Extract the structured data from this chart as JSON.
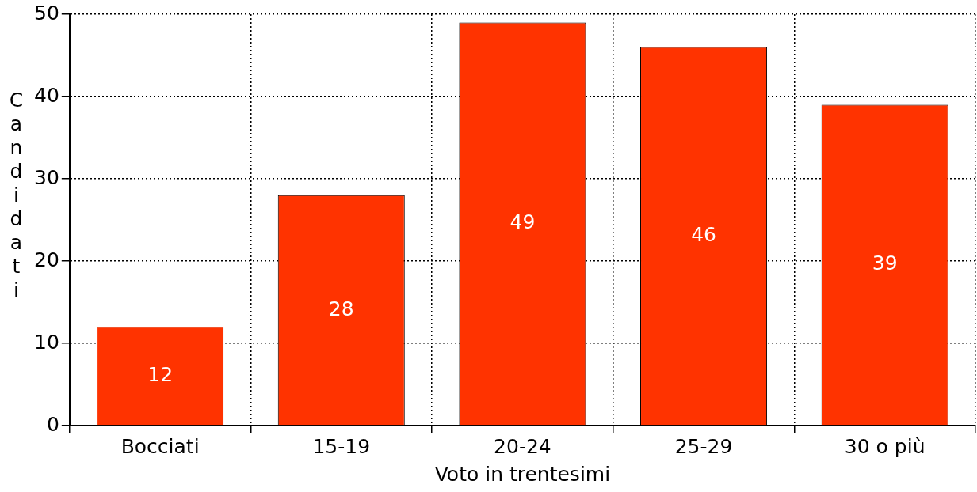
{
  "chart_data": {
    "type": "bar",
    "xlabel": "Voto in trentesimi",
    "ylabel": "Candidati",
    "categories": [
      "Bocciati",
      "15-19",
      "20-24",
      "25-29",
      "30 o più"
    ],
    "values": [
      12,
      28,
      49,
      46,
      39
    ],
    "color": "#ff3300",
    "ylim": [
      0,
      50
    ],
    "yticks": [
      0,
      10,
      20,
      30,
      40,
      50
    ],
    "grid": true,
    "legend": false,
    "data_labels": true
  }
}
